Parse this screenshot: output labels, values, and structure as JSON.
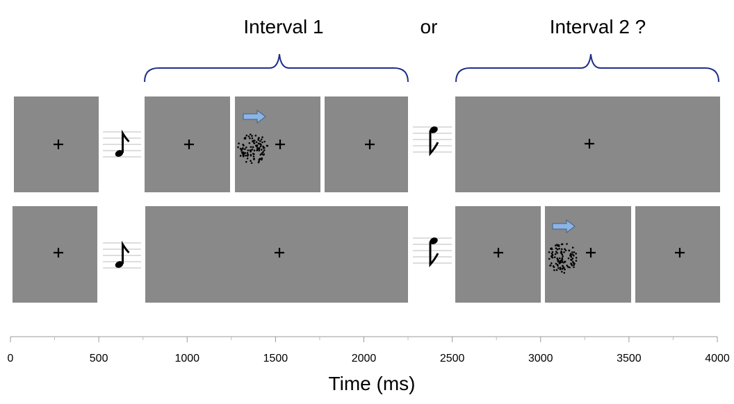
{
  "header": {
    "interval_1": "Interval 1",
    "or": "or",
    "interval_2": "Interval 2 ?"
  },
  "axis": {
    "xlim": [
      0,
      4000
    ],
    "xticks": [
      0,
      500,
      1000,
      1500,
      2000,
      2500,
      3000,
      3500,
      4000
    ],
    "label": "Time (ms)"
  }
}
